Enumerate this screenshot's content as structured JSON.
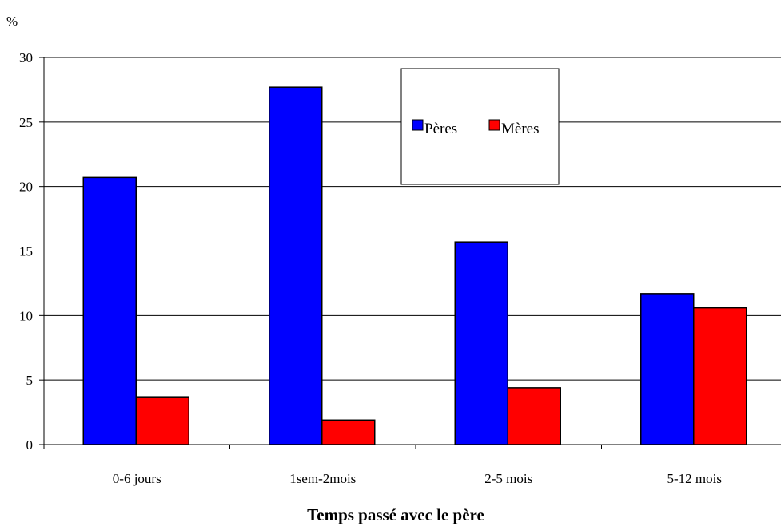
{
  "chart_data": {
    "type": "bar",
    "ylabel": "%",
    "xlabel": "Temps passé avec le père",
    "ylim": [
      0,
      30
    ],
    "yticks": [
      0,
      5,
      10,
      15,
      20,
      25,
      30
    ],
    "grid": true,
    "legend_position": "top-center",
    "categories": [
      "0-6 jours",
      "1sem-2mois",
      "2-5 mois",
      "5-12 mois"
    ],
    "series": [
      {
        "name": "Pères",
        "color": "#0000ff",
        "values": [
          20.7,
          27.7,
          15.7,
          11.7
        ]
      },
      {
        "name": "Mères",
        "color": "#ff0000",
        "values": [
          3.7,
          1.9,
          4.4,
          10.6
        ]
      }
    ]
  }
}
